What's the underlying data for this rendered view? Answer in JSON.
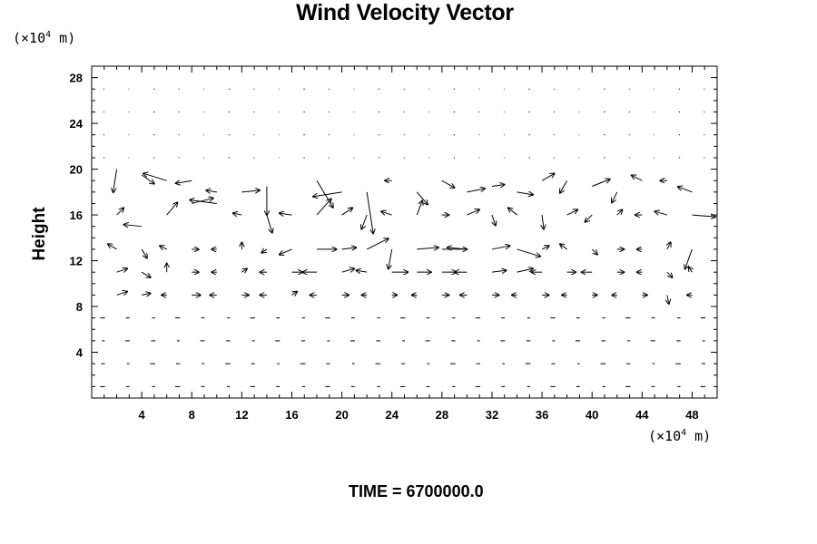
{
  "chart_data": {
    "type": "vector-field",
    "title": "Wind Velocity Vector",
    "ylabel": "Height",
    "y_unit": {
      "prefix": "(×10",
      "exponent": "4",
      "suffix": " m)"
    },
    "x_unit": {
      "prefix": "(×10",
      "exponent": "4",
      "suffix": " m)"
    },
    "footer_text": "TIME = 6700000.0",
    "xlim": [
      0,
      50
    ],
    "ylim": [
      0,
      29
    ],
    "xticks": [
      4,
      8,
      12,
      16,
      20,
      24,
      28,
      32,
      36,
      40,
      44,
      48
    ],
    "xtick_labels": [
      "4",
      "8",
      "12",
      "16",
      "20",
      "24",
      "28",
      "32",
      "36",
      "40",
      "44",
      "48"
    ],
    "yticks": [
      4,
      8,
      12,
      16,
      20,
      24,
      28
    ],
    "ytick_labels": [
      "4",
      "8",
      "12",
      "16",
      "20",
      "24",
      "28"
    ],
    "grid": false,
    "vectors": [
      {
        "x": 2,
        "y": 20,
        "u": -0.4,
        "v": -2.6
      },
      {
        "x": 4,
        "y": 19.5,
        "u": 1.4,
        "v": -1.0
      },
      {
        "x": 6,
        "y": 19,
        "u": -2.6,
        "v": 0.8
      },
      {
        "x": 8,
        "y": 19,
        "u": -1.8,
        "v": -0.3
      },
      {
        "x": 10,
        "y": 18,
        "u": -1.2,
        "v": 0.2
      },
      {
        "x": 12,
        "y": 18,
        "u": 2.0,
        "v": 0.2
      },
      {
        "x": 14,
        "y": 18.5,
        "u": 0.0,
        "v": -3.2
      },
      {
        "x": 18,
        "y": 19,
        "u": 1.8,
        "v": -3.0
      },
      {
        "x": 20,
        "y": 18,
        "u": -3.2,
        "v": -0.5
      },
      {
        "x": 22,
        "y": 18,
        "u": 0.7,
        "v": -4.6
      },
      {
        "x": 24,
        "y": 19,
        "u": -0.8,
        "v": 0.0
      },
      {
        "x": 26,
        "y": 18,
        "u": 1.2,
        "v": -1.4
      },
      {
        "x": 28,
        "y": 19,
        "u": 1.4,
        "v": -0.8
      },
      {
        "x": 30,
        "y": 18,
        "u": 2.0,
        "v": 0.4
      },
      {
        "x": 32,
        "y": 18.5,
        "u": 1.4,
        "v": 0.2
      },
      {
        "x": 34,
        "y": 18,
        "u": 1.8,
        "v": -0.3
      },
      {
        "x": 36,
        "y": 19,
        "u": 1.4,
        "v": 0.8
      },
      {
        "x": 38,
        "y": 19,
        "u": -0.8,
        "v": -1.4
      },
      {
        "x": 40,
        "y": 18.5,
        "u": 2.0,
        "v": 0.8
      },
      {
        "x": 42,
        "y": 18,
        "u": -0.6,
        "v": -1.2
      },
      {
        "x": 44,
        "y": 19,
        "u": -1.2,
        "v": 0.6
      },
      {
        "x": 46,
        "y": 19,
        "u": -0.8,
        "v": 0.0
      },
      {
        "x": 48,
        "y": 18,
        "u": -1.6,
        "v": 0.6
      },
      {
        "x": 2,
        "y": 16,
        "u": 0.8,
        "v": 0.8
      },
      {
        "x": 4,
        "y": 15,
        "u": -2.0,
        "v": 0.2
      },
      {
        "x": 6,
        "y": 16,
        "u": 1.2,
        "v": 1.4
      },
      {
        "x": 8,
        "y": 17,
        "u": 2.4,
        "v": 0.6
      },
      {
        "x": 10,
        "y": 17,
        "u": -3.0,
        "v": 0.4
      },
      {
        "x": 12,
        "y": 16,
        "u": -1.0,
        "v": 0.2
      },
      {
        "x": 14,
        "y": 16,
        "u": 0.6,
        "v": -2.0
      },
      {
        "x": 16,
        "y": 16,
        "u": -1.4,
        "v": 0.2
      },
      {
        "x": 18,
        "y": 16,
        "u": 1.6,
        "v": 1.8
      },
      {
        "x": 20,
        "y": 16,
        "u": 1.2,
        "v": 0.8
      },
      {
        "x": 22,
        "y": 16,
        "u": -0.6,
        "v": -1.6
      },
      {
        "x": 24,
        "y": 16,
        "u": -1.2,
        "v": 0.4
      },
      {
        "x": 26,
        "y": 16,
        "u": 0.6,
        "v": 1.6
      },
      {
        "x": 28,
        "y": 16,
        "u": 0.8,
        "v": 0.0
      },
      {
        "x": 30,
        "y": 16,
        "u": 1.4,
        "v": 0.6
      },
      {
        "x": 32,
        "y": 16,
        "u": 0.4,
        "v": -1.2
      },
      {
        "x": 34,
        "y": 16,
        "u": -1.0,
        "v": 0.8
      },
      {
        "x": 36,
        "y": 16,
        "u": 0.2,
        "v": -1.6
      },
      {
        "x": 38,
        "y": 16,
        "u": 1.2,
        "v": 0.6
      },
      {
        "x": 40,
        "y": 16,
        "u": -0.8,
        "v": -0.8
      },
      {
        "x": 42,
        "y": 16,
        "u": 0.6,
        "v": 0.6
      },
      {
        "x": 44,
        "y": 16,
        "u": -0.8,
        "v": 0.0
      },
      {
        "x": 46,
        "y": 16,
        "u": -1.4,
        "v": 0.4
      },
      {
        "x": 48,
        "y": 16,
        "u": 2.6,
        "v": -0.2
      },
      {
        "x": 2,
        "y": 13,
        "u": -1.0,
        "v": 0.6
      },
      {
        "x": 4,
        "y": 13,
        "u": 0.6,
        "v": -1.0
      },
      {
        "x": 6,
        "y": 13,
        "u": -0.8,
        "v": 0.4
      },
      {
        "x": 8,
        "y": 13,
        "u": 0.8,
        "v": 0.0
      },
      {
        "x": 10,
        "y": 13,
        "u": -0.6,
        "v": 0.0
      },
      {
        "x": 12,
        "y": 13,
        "u": 0.0,
        "v": 0.8
      },
      {
        "x": 14,
        "y": 13,
        "u": -0.6,
        "v": -0.4
      },
      {
        "x": 16,
        "y": 13,
        "u": -1.4,
        "v": -0.6
      },
      {
        "x": 18,
        "y": 13,
        "u": 2.2,
        "v": 0.0
      },
      {
        "x": 20,
        "y": 13,
        "u": 1.6,
        "v": 0.2
      },
      {
        "x": 22,
        "y": 13,
        "u": 2.4,
        "v": 1.2
      },
      {
        "x": 24,
        "y": 13,
        "u": -0.4,
        "v": -2.2
      },
      {
        "x": 26,
        "y": 13,
        "u": 2.4,
        "v": 0.2
      },
      {
        "x": 28,
        "y": 13,
        "u": 2.8,
        "v": 0.0
      },
      {
        "x": 30,
        "y": 13,
        "u": -2.2,
        "v": 0.2
      },
      {
        "x": 32,
        "y": 13,
        "u": 2.0,
        "v": 0.4
      },
      {
        "x": 34,
        "y": 13,
        "u": 2.6,
        "v": -0.8
      },
      {
        "x": 36,
        "y": 13,
        "u": 0.8,
        "v": 0.4
      },
      {
        "x": 38,
        "y": 13,
        "u": -0.8,
        "v": 0.6
      },
      {
        "x": 40,
        "y": 13,
        "u": 0.6,
        "v": -0.6
      },
      {
        "x": 42,
        "y": 13,
        "u": 0.8,
        "v": 0.0
      },
      {
        "x": 44,
        "y": 13,
        "u": -0.6,
        "v": 0.0
      },
      {
        "x": 46,
        "y": 13,
        "u": 0.4,
        "v": 0.8
      },
      {
        "x": 48,
        "y": 13,
        "u": -0.8,
        "v": -2.2
      },
      {
        "x": 2,
        "y": 11,
        "u": 1.2,
        "v": 0.4
      },
      {
        "x": 4,
        "y": 11,
        "u": 1.0,
        "v": -0.6
      },
      {
        "x": 6,
        "y": 11,
        "u": 0.0,
        "v": 1.0
      },
      {
        "x": 8,
        "y": 11,
        "u": 0.8,
        "v": 0.0
      },
      {
        "x": 10,
        "y": 11,
        "u": -0.6,
        "v": 0.0
      },
      {
        "x": 12,
        "y": 11,
        "u": 0.6,
        "v": 0.4
      },
      {
        "x": 14,
        "y": 11,
        "u": -0.8,
        "v": 0.0
      },
      {
        "x": 16,
        "y": 11,
        "u": 1.2,
        "v": 0.0
      },
      {
        "x": 18,
        "y": 11,
        "u": -1.6,
        "v": 0.0
      },
      {
        "x": 20,
        "y": 11,
        "u": 1.4,
        "v": 0.4
      },
      {
        "x": 22,
        "y": 11,
        "u": -1.2,
        "v": 0.2
      },
      {
        "x": 24,
        "y": 11,
        "u": 1.8,
        "v": 0.0
      },
      {
        "x": 26,
        "y": 11,
        "u": 1.6,
        "v": 0.0
      },
      {
        "x": 28,
        "y": 11,
        "u": 1.6,
        "v": 0.0
      },
      {
        "x": 30,
        "y": 11,
        "u": -1.4,
        "v": 0.0
      },
      {
        "x": 32,
        "y": 11,
        "u": 1.6,
        "v": 0.2
      },
      {
        "x": 34,
        "y": 11,
        "u": 1.8,
        "v": 0.4
      },
      {
        "x": 36,
        "y": 11,
        "u": -1.2,
        "v": 0.0
      },
      {
        "x": 38,
        "y": 11,
        "u": 1.0,
        "v": 0.0
      },
      {
        "x": 40,
        "y": 11,
        "u": -1.2,
        "v": 0.0
      },
      {
        "x": 42,
        "y": 11,
        "u": 0.8,
        "v": 0.0
      },
      {
        "x": 44,
        "y": 11,
        "u": -0.6,
        "v": 0.0
      },
      {
        "x": 46,
        "y": 11,
        "u": 0.6,
        "v": -0.6
      },
      {
        "x": 48,
        "y": 11,
        "u": -0.4,
        "v": 0.6
      },
      {
        "x": 2,
        "y": 9,
        "u": 1.2,
        "v": 0.4
      },
      {
        "x": 4,
        "y": 9,
        "u": 1.0,
        "v": 0.2
      },
      {
        "x": 6,
        "y": 9,
        "u": -0.6,
        "v": 0.0
      },
      {
        "x": 8,
        "y": 9,
        "u": 1.0,
        "v": 0.0
      },
      {
        "x": 10,
        "y": 9,
        "u": -0.8,
        "v": 0.0
      },
      {
        "x": 12,
        "y": 9,
        "u": 0.8,
        "v": 0.0
      },
      {
        "x": 14,
        "y": 9,
        "u": -0.8,
        "v": 0.0
      },
      {
        "x": 16,
        "y": 9,
        "u": 0.6,
        "v": 0.4
      },
      {
        "x": 18,
        "y": 9,
        "u": -0.8,
        "v": 0.0
      },
      {
        "x": 20,
        "y": 9,
        "u": 0.8,
        "v": 0.0
      },
      {
        "x": 22,
        "y": 9,
        "u": -0.6,
        "v": 0.0
      },
      {
        "x": 24,
        "y": 9,
        "u": 0.6,
        "v": 0.0
      },
      {
        "x": 26,
        "y": 9,
        "u": -0.6,
        "v": 0.0
      },
      {
        "x": 28,
        "y": 9,
        "u": 0.8,
        "v": 0.0
      },
      {
        "x": 30,
        "y": 9,
        "u": -0.8,
        "v": 0.0
      },
      {
        "x": 32,
        "y": 9,
        "u": 0.8,
        "v": 0.0
      },
      {
        "x": 34,
        "y": 9,
        "u": -0.6,
        "v": 0.0
      },
      {
        "x": 36,
        "y": 9,
        "u": 0.8,
        "v": 0.0
      },
      {
        "x": 38,
        "y": 9,
        "u": -0.6,
        "v": 0.0
      },
      {
        "x": 40,
        "y": 9,
        "u": 0.6,
        "v": 0.0
      },
      {
        "x": 42,
        "y": 9,
        "u": -0.6,
        "v": 0.0
      },
      {
        "x": 44,
        "y": 9,
        "u": 0.6,
        "v": 0.0
      },
      {
        "x": 46,
        "y": 9,
        "u": 0.2,
        "v": -1.0
      },
      {
        "x": 48,
        "y": 9,
        "u": -0.6,
        "v": 0.0
      }
    ]
  }
}
